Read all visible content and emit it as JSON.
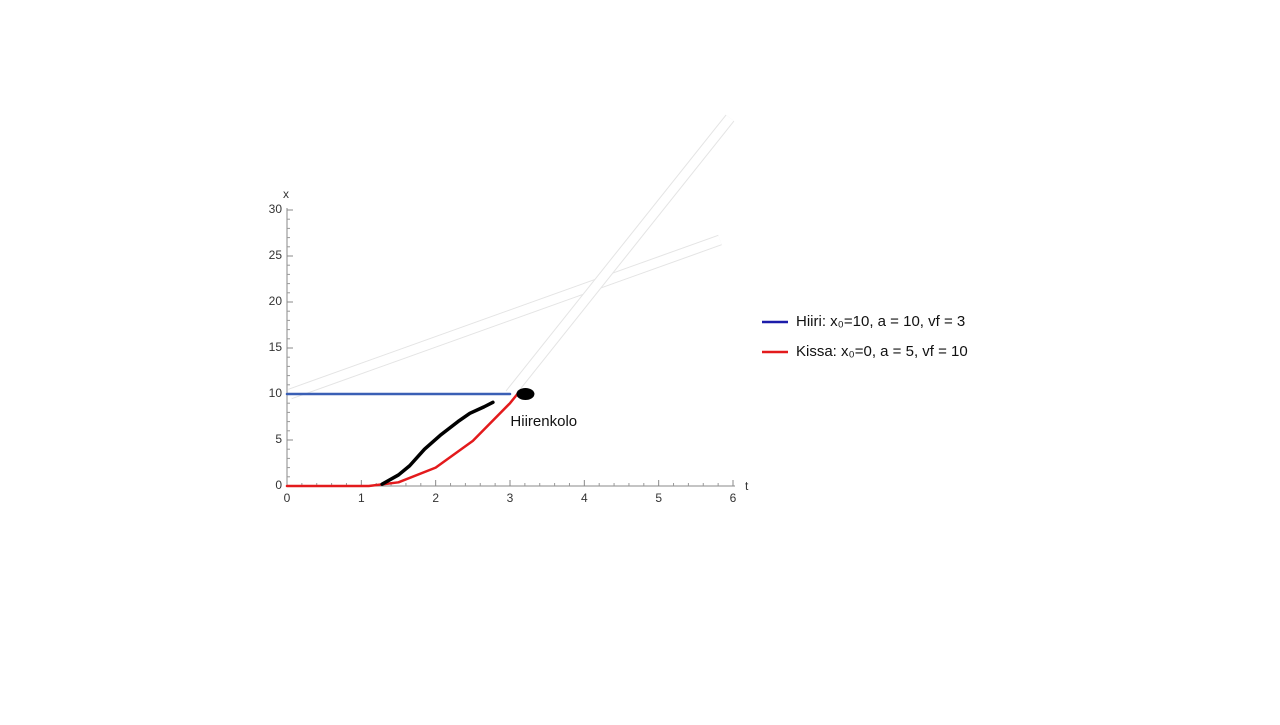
{
  "chart_data": {
    "type": "line",
    "x_label": "t",
    "y_label": "x",
    "xlim": [
      0,
      6
    ],
    "ylim": [
      0,
      30
    ],
    "xticks": [
      0,
      1,
      2,
      3,
      4,
      5,
      6
    ],
    "yticks": [
      0,
      5,
      10,
      15,
      20,
      25,
      30
    ],
    "series": [
      {
        "name": "Hiiri: x₀=10, a = 10, vf = 3",
        "color": "#3a5fb5",
        "legend_color": "#1c1caa",
        "x": [
          0,
          3
        ],
        "values": [
          10,
          10
        ]
      },
      {
        "name": "Kissa: x₀=0, a = 5, vf = 10",
        "color": "#e31a1c",
        "legend_color": "#e31a1c",
        "x": [
          0,
          1.1,
          1.5,
          2,
          2.5,
          3,
          3.1
        ],
        "values": [
          0,
          0,
          0.4,
          2,
          4.9,
          9,
          10
        ]
      },
      {
        "color": "#000000",
        "x": [
          1.28,
          1.5,
          1.65,
          1.85,
          2.06,
          2.3,
          2.46,
          2.65,
          2.77
        ],
        "values": [
          0.2,
          1.2,
          2.2,
          4,
          5.5,
          7,
          7.9,
          8.6,
          9.1
        ]
      }
    ],
    "annotations": [
      {
        "text": "Hiirenkolo",
        "x": 3.1,
        "y": 10
      }
    ]
  }
}
